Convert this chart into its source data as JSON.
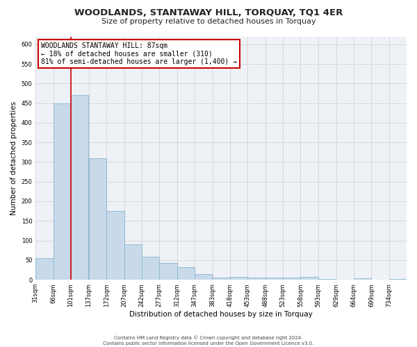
{
  "title": "WOODLANDS, STANTAWAY HILL, TORQUAY, TQ1 4ER",
  "subtitle": "Size of property relative to detached houses in Torquay",
  "xlabel": "Distribution of detached houses by size in Torquay",
  "ylabel": "Number of detached properties",
  "bar_color": "#c8daea",
  "bar_edge_color": "#89b4cc",
  "grid_color": "#cccccc",
  "background_color": "#eef2f7",
  "annotation_box_color": "#ffffff",
  "annotation_box_edge": "#cc0000",
  "vline_color": "#cc0000",
  "bins": [
    31,
    66,
    101,
    137,
    172,
    207,
    242,
    277,
    312,
    347,
    383,
    418,
    453,
    488,
    523,
    558,
    593,
    629,
    664,
    699,
    734
  ],
  "counts": [
    55,
    450,
    470,
    310,
    175,
    90,
    58,
    42,
    32,
    15,
    5,
    8,
    5,
    5,
    5,
    8,
    2,
    0,
    3,
    0,
    2
  ],
  "bin_labels": [
    "31sqm",
    "66sqm",
    "101sqm",
    "137sqm",
    "172sqm",
    "207sqm",
    "242sqm",
    "277sqm",
    "312sqm",
    "347sqm",
    "383sqm",
    "418sqm",
    "453sqm",
    "488sqm",
    "523sqm",
    "558sqm",
    "593sqm",
    "629sqm",
    "664sqm",
    "699sqm",
    "734sqm"
  ],
  "vline_x": 101,
  "annotation_text_line1": "WOODLANDS STANTAWAY HILL: 87sqm",
  "annotation_text_line2": "← 18% of detached houses are smaller (310)",
  "annotation_text_line3": "81% of semi-detached houses are larger (1,400) →",
  "footer_line1": "Contains HM Land Registry data © Crown copyright and database right 2024.",
  "footer_line2": "Contains public sector information licensed under the Open Government Licence v3.0.",
  "ylim": [
    0,
    620
  ],
  "yticks": [
    0,
    50,
    100,
    150,
    200,
    250,
    300,
    350,
    400,
    450,
    500,
    550,
    600
  ],
  "fig_width": 6.0,
  "fig_height": 5.0,
  "title_fontsize": 9.5,
  "subtitle_fontsize": 8.0,
  "xlabel_fontsize": 7.5,
  "ylabel_fontsize": 7.5,
  "tick_fontsize": 6.0,
  "annotation_fontsize": 7.0,
  "footer_fontsize": 5.0
}
